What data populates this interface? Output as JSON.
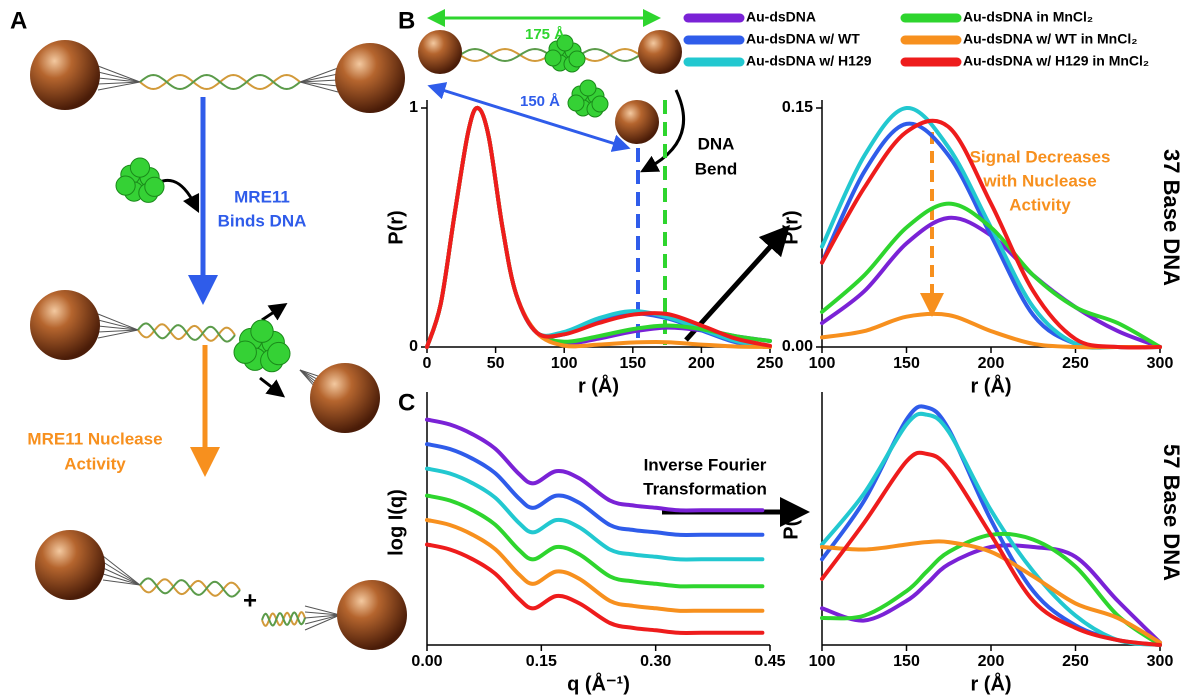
{
  "panel_labels": [
    "A",
    "B",
    "C"
  ],
  "diagram": {
    "binds_label": [
      "MRE11",
      "Binds DNA"
    ],
    "nuclease_label": [
      "MRE11 Nuclease",
      "Activity"
    ],
    "plus": "+",
    "distance_long": "175 Å",
    "distance_short": "150 Å",
    "bend_label": [
      "DNA",
      "Bend"
    ],
    "signal_label": [
      "Signal Decreases",
      "with Nuclease",
      "Activity"
    ],
    "transform_label": [
      "Inverse Fourier",
      "Transformation"
    ]
  },
  "chart_data": [
    {
      "type": "line",
      "x_label": "r (Å)",
      "y_label": "P(r)",
      "x": [
        0,
        10,
        20,
        30,
        37,
        45,
        55,
        65,
        80,
        100,
        125,
        150,
        175,
        200,
        225,
        250
      ],
      "xlim": [
        0,
        250
      ],
      "xticks": [
        0,
        50,
        100,
        150,
        200,
        250
      ],
      "ylim": [
        0,
        1
      ],
      "yticks": [
        0,
        1
      ],
      "series": [
        {
          "name": "Au-dsDNA",
          "color": "#7a22d6",
          "values": [
            0,
            0.18,
            0.55,
            0.9,
            1,
            0.88,
            0.5,
            0.22,
            0.06,
            0.015,
            0.035,
            0.065,
            0.081,
            0.07,
            0.045,
            0.025
          ]
        },
        {
          "name": "Au-dsDNA w/ WT",
          "color": "#2f5cea",
          "values": [
            0,
            0.18,
            0.55,
            0.9,
            1,
            0.88,
            0.5,
            0.22,
            0.06,
            0.053,
            0.11,
            0.14,
            0.12,
            0.07,
            0.02,
            0.002
          ]
        },
        {
          "name": "Au-dsDNA w/ H129",
          "color": "#22c8d0",
          "values": [
            0,
            0.18,
            0.55,
            0.9,
            1,
            0.88,
            0.5,
            0.22,
            0.06,
            0.063,
            0.12,
            0.15,
            0.125,
            0.075,
            0.025,
            0.002
          ]
        },
        {
          "name": "Au-dsDNA in MnCl₂",
          "color": "#2ed52e",
          "values": [
            0,
            0.18,
            0.55,
            0.9,
            1,
            0.88,
            0.5,
            0.22,
            0.06,
            0.022,
            0.045,
            0.075,
            0.09,
            0.075,
            0.045,
            0.025
          ]
        },
        {
          "name": "Au-dsDNA w/ WT in MnCl₂",
          "color": "#f7901e",
          "values": [
            0,
            0.18,
            0.55,
            0.9,
            1,
            0.88,
            0.5,
            0.22,
            0.06,
            0.006,
            0.01,
            0.019,
            0.02,
            0.01,
            0.002,
            0
          ]
        },
        {
          "name": "Au-dsDNA w/ H129 in MnCl₂",
          "color": "#ee1c1c",
          "values": [
            0,
            0.18,
            0.55,
            0.9,
            1,
            0.88,
            0.5,
            0.22,
            0.06,
            0.053,
            0.1,
            0.135,
            0.138,
            0.09,
            0.035,
            0.005
          ]
        }
      ]
    },
    {
      "type": "line",
      "x_label": "r (Å)",
      "y_label": "P(r)",
      "side_label": "37 Base DNA",
      "x": [
        100,
        125,
        150,
        175,
        200,
        225,
        250,
        275,
        300
      ],
      "xlim": [
        100,
        300
      ],
      "xticks": [
        100,
        150,
        200,
        250,
        300
      ],
      "ylim": [
        0,
        0.15
      ],
      "yticks": [
        {
          "value": 0,
          "label": "0.00"
        },
        0.15
      ],
      "series": [
        {
          "color": "#7a22d6",
          "values": [
            0.015,
            0.035,
            0.065,
            0.081,
            0.07,
            0.045,
            0.025,
            0.01,
            0
          ]
        },
        {
          "color": "#2f5cea",
          "values": [
            0.053,
            0.11,
            0.14,
            0.12,
            0.07,
            0.02,
            0.002,
            0,
            0
          ]
        },
        {
          "color": "#22c8d0",
          "values": [
            0.063,
            0.12,
            0.15,
            0.125,
            0.075,
            0.025,
            0.002,
            0,
            0
          ]
        },
        {
          "color": "#2ed52e",
          "values": [
            0.022,
            0.045,
            0.075,
            0.09,
            0.075,
            0.045,
            0.025,
            0.015,
            0
          ]
        },
        {
          "color": "#f7901e",
          "values": [
            0.006,
            0.01,
            0.019,
            0.02,
            0.01,
            0.002,
            0,
            0,
            0
          ]
        },
        {
          "color": "#ee1c1c",
          "values": [
            0.053,
            0.1,
            0.135,
            0.138,
            0.09,
            0.035,
            0.005,
            0,
            0
          ]
        }
      ]
    },
    {
      "type": "line",
      "x_label": "q (Å⁻¹)",
      "y_label": "log I(q)",
      "x": [
        0,
        0.03,
        0.06,
        0.09,
        0.12,
        0.14,
        0.17,
        0.2,
        0.24,
        0.27,
        0.3,
        0.33,
        0.36,
        0.39,
        0.42,
        0.44
      ],
      "xlim": [
        0,
        0.45
      ],
      "xticks": [
        {
          "value": 0,
          "label": "0.00"
        },
        0.15,
        {
          "value": 0.3,
          "label": "0.30"
        },
        0.45
      ],
      "ylim": [
        -0.8,
        9.2
      ],
      "series": [
        {
          "color": "#7a22d6",
          "values": [
            8.4,
            8.2,
            7.8,
            7.2,
            6.2,
            5.8,
            6.3,
            6.0,
            5.1,
            4.9,
            4.8,
            4.7,
            4.7,
            4.7,
            4.7,
            4.7
          ]
        },
        {
          "color": "#2f5cea",
          "values": [
            7.4,
            7.2,
            6.8,
            6.2,
            5.2,
            4.8,
            5.3,
            5.0,
            4.1,
            3.9,
            3.8,
            3.7,
            3.7,
            3.7,
            3.7,
            3.7
          ]
        },
        {
          "color": "#22c8d0",
          "values": [
            6.4,
            6.2,
            5.8,
            5.2,
            4.2,
            3.8,
            4.3,
            4.0,
            3.1,
            2.9,
            2.8,
            2.7,
            2.7,
            2.7,
            2.7,
            2.7
          ]
        },
        {
          "color": "#2ed52e",
          "values": [
            5.3,
            5.1,
            4.7,
            4.1,
            3.1,
            2.7,
            3.2,
            2.9,
            2.0,
            1.8,
            1.7,
            1.6,
            1.6,
            1.6,
            1.6,
            1.6
          ]
        },
        {
          "color": "#f7901e",
          "values": [
            4.3,
            4.1,
            3.7,
            3.1,
            2.1,
            1.7,
            2.2,
            1.9,
            1.0,
            0.8,
            0.7,
            0.6,
            0.6,
            0.6,
            0.6,
            0.6
          ]
        },
        {
          "color": "#ee1c1c",
          "values": [
            3.3,
            3.1,
            2.7,
            2.1,
            1.1,
            0.7,
            1.2,
            0.9,
            0.1,
            -0.1,
            -0.2,
            -0.3,
            -0.3,
            -0.3,
            -0.3,
            -0.3
          ]
        }
      ]
    },
    {
      "type": "line",
      "x_label": "r (Å)",
      "y_label": "P(r)",
      "side_label": "57 Base DNA",
      "x": [
        100,
        125,
        150,
        162,
        175,
        200,
        225,
        250,
        275,
        300
      ],
      "xlim": [
        100,
        300
      ],
      "xticks": [
        100,
        150,
        200,
        250,
        300
      ],
      "ylim": [
        0,
        1
      ],
      "series": [
        {
          "color": "#7a22d6",
          "values": [
            0.15,
            0.1,
            0.18,
            0.25,
            0.33,
            0.4,
            0.4,
            0.36,
            0.18,
            0.01
          ]
        },
        {
          "color": "#2f5cea",
          "values": [
            0.35,
            0.59,
            0.92,
            0.97,
            0.88,
            0.51,
            0.22,
            0.08,
            0.02,
            0
          ]
        },
        {
          "color": "#22c8d0",
          "values": [
            0.41,
            0.62,
            0.9,
            0.94,
            0.87,
            0.55,
            0.3,
            0.12,
            0.02,
            0
          ]
        },
        {
          "color": "#2ed52e",
          "values": [
            0.11,
            0.12,
            0.22,
            0.3,
            0.38,
            0.45,
            0.43,
            0.32,
            0.12,
            0
          ]
        },
        {
          "color": "#f7901e",
          "values": [
            0.4,
            0.39,
            0.41,
            0.42,
            0.42,
            0.38,
            0.28,
            0.17,
            0.11,
            0.01
          ]
        },
        {
          "color": "#ee1c1c",
          "values": [
            0.27,
            0.5,
            0.75,
            0.78,
            0.72,
            0.45,
            0.18,
            0.07,
            0.02,
            0
          ]
        }
      ]
    }
  ]
}
